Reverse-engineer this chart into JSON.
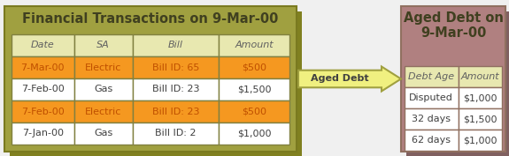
{
  "left_title": "Financial Transactions on 9-Mar-00",
  "left_bg": "#A0A040",
  "left_bg_edge": "#7A7A20",
  "left_inner_bg": "#ECECC0",
  "left_header_bg": "#E8E8B0",
  "left_header_row": [
    "Date",
    "SA",
    "Bill",
    "Amount"
  ],
  "left_rows": [
    [
      "7-Mar-00",
      "Electric",
      "Bill ID: 65",
      "$500"
    ],
    [
      "7-Feb-00",
      "Gas",
      "Bill ID: 23",
      "$1,500"
    ],
    [
      "7-Feb-00",
      "Electric",
      "Bill ID: 23",
      "$500"
    ],
    [
      "7-Jan-00",
      "Gas",
      "Bill ID: 2",
      "$1,000"
    ]
  ],
  "left_row_colors": [
    "#F59820",
    "#FFFFFF",
    "#F59820",
    "#FFFFFF"
  ],
  "left_row_text_colors": [
    "#C05000",
    "#404040",
    "#C05000",
    "#404040"
  ],
  "right_title": "Aged Debt on\n9-Mar-00",
  "right_bg": "#B08080",
  "right_bg_edge": "#907060",
  "right_inner_bg": "#E8E8B0",
  "right_header_row": [
    "Debt Age",
    "Amount"
  ],
  "right_rows": [
    [
      "Disputed",
      "$1,000"
    ],
    [
      "32 days",
      "$1,500"
    ],
    [
      "62 days",
      "$1,000"
    ]
  ],
  "right_row_bg": "#FFFFFF",
  "arrow_label": "Aged Debt",
  "arrow_fill": "#F0F080",
  "arrow_edge": "#A0A040",
  "header_text_color": "#606060",
  "left_title_color": "#404020",
  "right_title_color": "#404020",
  "cell_text_color": "#404040"
}
